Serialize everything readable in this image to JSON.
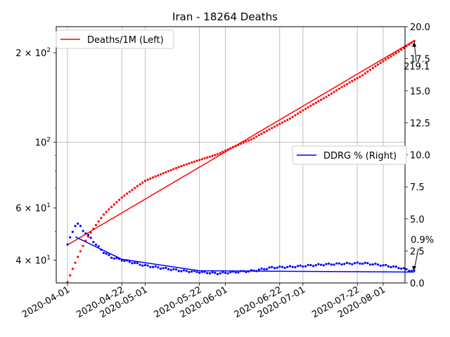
{
  "chart_data": {
    "type": "line",
    "title": "Iran - 18264 Deaths",
    "grid": true,
    "x_ticks": [
      "2020-04-01",
      "2020-04-22",
      "2020-05-01",
      "2020-05-22",
      "2020-06-01",
      "2020-06-22",
      "2020-07-01",
      "2020-07-22",
      "2020-08-01"
    ],
    "left_axis": {
      "scale": "log",
      "range": [
        33.5,
        245
      ],
      "ticks": [
        {
          "value": 40,
          "base": "4",
          "exp": "1"
        },
        {
          "value": 60,
          "base": "6",
          "exp": "1"
        },
        {
          "value": 100,
          "base": "10",
          "exp": "2"
        },
        {
          "value": 200,
          "base": "2",
          "exp": "2"
        }
      ]
    },
    "right_axis": {
      "scale": "linear",
      "range": [
        0,
        20
      ],
      "ticks": [
        "0.0",
        "2.5",
        "5.0",
        "7.5",
        "10.0",
        "12.5",
        "15.0",
        "17.5",
        "20.0"
      ]
    },
    "series": [
      {
        "name": "Deaths/1M (Left)",
        "axis": "left",
        "color": "#ff0000",
        "points_date": [
          "2020-04-01",
          "2020-04-08",
          "2020-04-15",
          "2020-04-22",
          "2020-05-01",
          "2020-05-15",
          "2020-05-29",
          "2020-06-12",
          "2020-06-26",
          "2020-07-10",
          "2020-07-24",
          "2020-08-07",
          "2020-08-13"
        ],
        "points_value": [
          33.7,
          46.5,
          57.0,
          65.0,
          74.0,
          83.0,
          91.0,
          103.0,
          120.0,
          142.0,
          168.0,
          202.0,
          219.1
        ],
        "fit_value": [
          45.0,
          220.0
        ],
        "annotation": "219.1"
      },
      {
        "name": "DDRG % (Right)",
        "axis": "right",
        "color": "#0000ff",
        "points_date": [
          "2020-04-01",
          "2020-04-04",
          "2020-04-05",
          "2020-04-06",
          "2020-04-07",
          "2020-04-08",
          "2020-04-10",
          "2020-04-12",
          "2020-04-15",
          "2020-04-18",
          "2020-04-22",
          "2020-04-26",
          "2020-05-01",
          "2020-05-08",
          "2020-05-15",
          "2020-05-22",
          "2020-05-29",
          "2020-06-05",
          "2020-06-12",
          "2020-06-19",
          "2020-06-26",
          "2020-07-03",
          "2020-07-10",
          "2020-07-17",
          "2020-07-24",
          "2020-07-31",
          "2020-08-07",
          "2020-08-13"
        ],
        "points_value": [
          3.0,
          4.5,
          4.6,
          4.4,
          4.1,
          3.9,
          3.5,
          3.0,
          2.4,
          2.0,
          1.8,
          1.6,
          1.35,
          1.15,
          0.95,
          0.85,
          0.75,
          0.85,
          0.95,
          1.2,
          1.25,
          1.35,
          1.45,
          1.5,
          1.55,
          1.4,
          1.2,
          0.9
        ],
        "fit_value": [
          3.6,
          0.85
        ],
        "annotation": "0.9%"
      }
    ]
  }
}
